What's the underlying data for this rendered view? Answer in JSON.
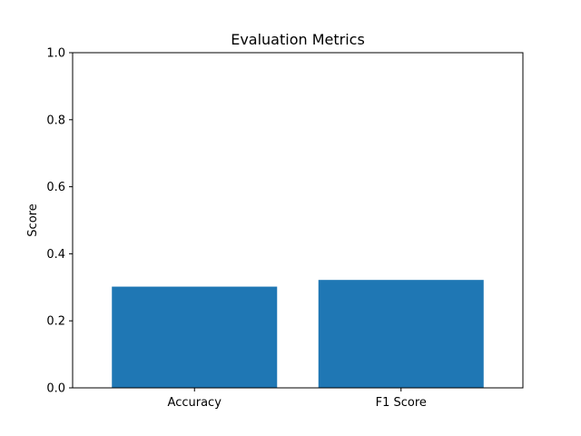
{
  "chart_data": {
    "type": "bar",
    "title": "Evaluation Metrics",
    "xlabel": "",
    "ylabel": "Score",
    "categories": [
      "Accuracy",
      "F1 Score"
    ],
    "values": [
      0.302,
      0.322
    ],
    "ylim": [
      0,
      1.0
    ],
    "yticks": [
      "0.0",
      "0.2",
      "0.4",
      "0.6",
      "0.8",
      "1.0"
    ],
    "grid": false,
    "bar_color": "#1f77b4"
  }
}
